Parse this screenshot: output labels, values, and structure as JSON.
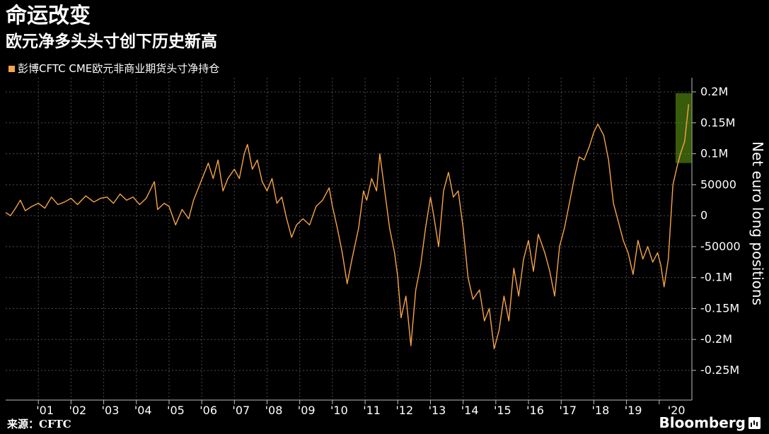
{
  "header": {
    "title": "命运改变",
    "subtitle": "欧元净多头头寸创下历史新高"
  },
  "footer": {
    "source": "来源：CFTC",
    "brand": "Bloomberg"
  },
  "colors": {
    "background": "#000000",
    "series": "#f7a448",
    "highlight_fill": "#66a615",
    "grid": "#4a4a4a",
    "text": "#ffffff"
  },
  "icons": {
    "brand": "bloomberg-chart-icon"
  },
  "chart_data": {
    "type": "line",
    "title": "命运改变",
    "subtitle": "欧元净多头头寸创下历史新高",
    "ylabel": "Net euro long positions",
    "xlabel": "",
    "ylim": [
      -250000,
      200000
    ],
    "xlim": [
      2000.0,
      2021.0
    ],
    "y_ticks": [
      {
        "value": 200000,
        "label": "0.2M"
      },
      {
        "value": 150000,
        "label": "0.15M"
      },
      {
        "value": 100000,
        "label": "0.1M"
      },
      {
        "value": 50000,
        "label": "50000"
      },
      {
        "value": 0,
        "label": "0"
      },
      {
        "value": -50000,
        "label": "-50000"
      },
      {
        "value": -100000,
        "label": "-0.1M"
      },
      {
        "value": -150000,
        "label": "-0.15M"
      },
      {
        "value": -200000,
        "label": "-0.2M"
      },
      {
        "value": -250000,
        "label": "-0.25M"
      }
    ],
    "x_ticks": [
      {
        "value": 2001.0,
        "label": "'01"
      },
      {
        "value": 2002.0,
        "label": "'02"
      },
      {
        "value": 2003.0,
        "label": "'03"
      },
      {
        "value": 2004.0,
        "label": "'04"
      },
      {
        "value": 2005.0,
        "label": "'05"
      },
      {
        "value": 2006.0,
        "label": "'06"
      },
      {
        "value": 2007.0,
        "label": "'07"
      },
      {
        "value": 2008.0,
        "label": "'08"
      },
      {
        "value": 2009.0,
        "label": "'09"
      },
      {
        "value": 2010.0,
        "label": "'10"
      },
      {
        "value": 2011.0,
        "label": "'11"
      },
      {
        "value": 2012.0,
        "label": "'12"
      },
      {
        "value": 2013.0,
        "label": "'13"
      },
      {
        "value": 2014.0,
        "label": "'14"
      },
      {
        "value": 2015.0,
        "label": "'15"
      },
      {
        "value": 2016.0,
        "label": "'16"
      },
      {
        "value": 2017.0,
        "label": "'17"
      },
      {
        "value": 2018.0,
        "label": "'18"
      },
      {
        "value": 2019.0,
        "label": "'19"
      },
      {
        "value": 2020.0,
        "label": "'20"
      }
    ],
    "grid": true,
    "legend": "top-left",
    "series": [
      {
        "name": "彭博CFTC CME欧元非商业期货头寸净持仓",
        "color": "#f7a448",
        "points": [
          [
            2000.0,
            5000
          ],
          [
            2000.15,
            0
          ],
          [
            2000.3,
            12000
          ],
          [
            2000.45,
            25000
          ],
          [
            2000.6,
            8000
          ],
          [
            2000.8,
            15000
          ],
          [
            2001.0,
            20000
          ],
          [
            2001.2,
            12000
          ],
          [
            2001.4,
            30000
          ],
          [
            2001.6,
            18000
          ],
          [
            2001.8,
            22000
          ],
          [
            2002.0,
            28000
          ],
          [
            2002.2,
            18000
          ],
          [
            2002.45,
            32000
          ],
          [
            2002.7,
            22000
          ],
          [
            2002.9,
            28000
          ],
          [
            2003.1,
            30000
          ],
          [
            2003.3,
            20000
          ],
          [
            2003.5,
            35000
          ],
          [
            2003.7,
            25000
          ],
          [
            2003.9,
            30000
          ],
          [
            2004.1,
            18000
          ],
          [
            2004.3,
            28000
          ],
          [
            2004.55,
            55000
          ],
          [
            2004.65,
            10000
          ],
          [
            2004.85,
            20000
          ],
          [
            2005.0,
            15000
          ],
          [
            2005.2,
            -15000
          ],
          [
            2005.4,
            10000
          ],
          [
            2005.6,
            -5000
          ],
          [
            2005.75,
            25000
          ],
          [
            2005.9,
            45000
          ],
          [
            2006.05,
            65000
          ],
          [
            2006.2,
            85000
          ],
          [
            2006.35,
            60000
          ],
          [
            2006.5,
            90000
          ],
          [
            2006.65,
            40000
          ],
          [
            2006.8,
            60000
          ],
          [
            2007.0,
            75000
          ],
          [
            2007.15,
            60000
          ],
          [
            2007.3,
            100000
          ],
          [
            2007.4,
            115000
          ],
          [
            2007.55,
            75000
          ],
          [
            2007.7,
            90000
          ],
          [
            2007.85,
            55000
          ],
          [
            2008.0,
            40000
          ],
          [
            2008.15,
            60000
          ],
          [
            2008.3,
            20000
          ],
          [
            2008.45,
            30000
          ],
          [
            2008.6,
            -5000
          ],
          [
            2008.75,
            -35000
          ],
          [
            2008.9,
            -15000
          ],
          [
            2009.1,
            -5000
          ],
          [
            2009.3,
            -15000
          ],
          [
            2009.5,
            15000
          ],
          [
            2009.7,
            25000
          ],
          [
            2009.9,
            45000
          ],
          [
            2010.0,
            15000
          ],
          [
            2010.15,
            -20000
          ],
          [
            2010.3,
            -60000
          ],
          [
            2010.45,
            -110000
          ],
          [
            2010.6,
            -70000
          ],
          [
            2010.8,
            -20000
          ],
          [
            2010.95,
            40000
          ],
          [
            2011.05,
            25000
          ],
          [
            2011.2,
            60000
          ],
          [
            2011.35,
            40000
          ],
          [
            2011.45,
            100000
          ],
          [
            2011.6,
            40000
          ],
          [
            2011.75,
            -20000
          ],
          [
            2011.9,
            -60000
          ],
          [
            2012.0,
            -100000
          ],
          [
            2012.1,
            -165000
          ],
          [
            2012.25,
            -130000
          ],
          [
            2012.4,
            -210000
          ],
          [
            2012.55,
            -120000
          ],
          [
            2012.7,
            -80000
          ],
          [
            2012.85,
            -20000
          ],
          [
            2013.0,
            30000
          ],
          [
            2013.1,
            0
          ],
          [
            2013.25,
            -50000
          ],
          [
            2013.4,
            40000
          ],
          [
            2013.55,
            70000
          ],
          [
            2013.7,
            30000
          ],
          [
            2013.85,
            40000
          ],
          [
            2014.0,
            -20000
          ],
          [
            2014.15,
            -100000
          ],
          [
            2014.3,
            -135000
          ],
          [
            2014.5,
            -120000
          ],
          [
            2014.65,
            -170000
          ],
          [
            2014.8,
            -150000
          ],
          [
            2014.95,
            -215000
          ],
          [
            2015.1,
            -185000
          ],
          [
            2015.25,
            -130000
          ],
          [
            2015.4,
            -170000
          ],
          [
            2015.55,
            -85000
          ],
          [
            2015.7,
            -130000
          ],
          [
            2015.85,
            -70000
          ],
          [
            2016.0,
            -40000
          ],
          [
            2016.15,
            -90000
          ],
          [
            2016.3,
            -30000
          ],
          [
            2016.5,
            -60000
          ],
          [
            2016.65,
            -90000
          ],
          [
            2016.8,
            -130000
          ],
          [
            2016.95,
            -50000
          ],
          [
            2017.1,
            -20000
          ],
          [
            2017.25,
            20000
          ],
          [
            2017.4,
            60000
          ],
          [
            2017.55,
            95000
          ],
          [
            2017.7,
            90000
          ],
          [
            2017.85,
            110000
          ],
          [
            2018.0,
            135000
          ],
          [
            2018.12,
            148000
          ],
          [
            2018.3,
            130000
          ],
          [
            2018.45,
            90000
          ],
          [
            2018.6,
            20000
          ],
          [
            2018.75,
            -10000
          ],
          [
            2018.9,
            -40000
          ],
          [
            2019.05,
            -60000
          ],
          [
            2019.2,
            -95000
          ],
          [
            2019.35,
            -40000
          ],
          [
            2019.5,
            -70000
          ],
          [
            2019.65,
            -50000
          ],
          [
            2019.8,
            -75000
          ],
          [
            2019.95,
            -60000
          ],
          [
            2020.05,
            -80000
          ],
          [
            2020.15,
            -115000
          ],
          [
            2020.28,
            -70000
          ],
          [
            2020.42,
            50000
          ],
          [
            2020.55,
            80000
          ],
          [
            2020.65,
            100000
          ],
          [
            2020.78,
            120000
          ],
          [
            2020.9,
            180000
          ]
        ]
      }
    ],
    "highlight_box": {
      "x0": 2020.5,
      "x1": 2021.0,
      "y0": 85000,
      "y1": 198000
    }
  }
}
